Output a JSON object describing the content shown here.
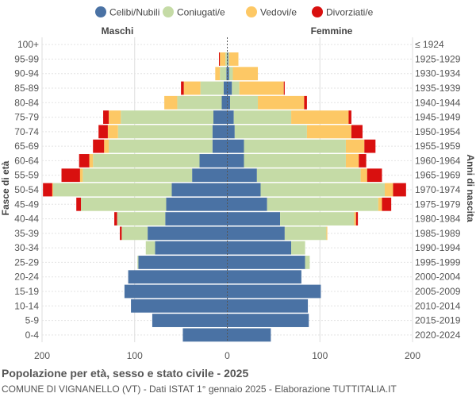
{
  "chart_data": {
    "type": "population-pyramid",
    "title": "Popolazione per età, sesso e stato civile - 2025",
    "subtitle": "COMUNE DI VIGNANELLO (VT) - Dati ISTAT 1° gennaio 2025 - Elaborazione TUTTITALIA.IT",
    "left_label": "Maschi",
    "right_label": "Femmine",
    "ylabel_left": "Fasce di età",
    "ylabel_right": "Anni di nascita",
    "xlim": [
      -200,
      200
    ],
    "x_ticks": [
      -200,
      -100,
      0,
      100,
      200
    ],
    "x_tick_labels": [
      "200",
      "100",
      "0",
      "100",
      "200"
    ],
    "legend_position": "top",
    "series": [
      {
        "name": "Celibi/Nubili",
        "color": "#4a72a4"
      },
      {
        "name": "Coniugati/e",
        "color": "#c5dba6"
      },
      {
        "name": "Vedovi/e",
        "color": "#fdc865"
      },
      {
        "name": "Divorziati/e",
        "color": "#d9100f"
      }
    ],
    "age_groups": [
      "100+",
      "95-99",
      "90-94",
      "85-89",
      "80-84",
      "75-79",
      "70-74",
      "65-69",
      "60-64",
      "55-59",
      "50-54",
      "45-49",
      "40-44",
      "35-39",
      "30-34",
      "25-29",
      "20-24",
      "15-19",
      "10-14",
      "5-9",
      "0-4"
    ],
    "birth_years": [
      "≤ 1924",
      "1925-1929",
      "1930-1934",
      "1935-1939",
      "1940-1944",
      "1945-1949",
      "1950-1954",
      "1955-1959",
      "1960-1964",
      "1965-1969",
      "1970-1974",
      "1975-1979",
      "1980-1984",
      "1985-1989",
      "1990-1994",
      "1995-1999",
      "2000-2004",
      "2005-2009",
      "2010-2014",
      "2015-2019",
      "2020-2024"
    ],
    "males": [
      [
        0,
        0,
        0,
        0
      ],
      [
        0,
        2,
        6,
        1
      ],
      [
        1,
        7,
        5,
        0
      ],
      [
        4,
        25,
        18,
        3
      ],
      [
        6,
        48,
        14,
        0
      ],
      [
        15,
        100,
        13,
        6
      ],
      [
        16,
        102,
        11,
        10
      ],
      [
        16,
        112,
        5,
        12
      ],
      [
        30,
        115,
        4,
        11
      ],
      [
        38,
        118,
        3,
        20
      ],
      [
        60,
        128,
        1,
        10
      ],
      [
        66,
        92,
        0,
        5
      ],
      [
        67,
        52,
        0,
        3
      ],
      [
        86,
        28,
        0,
        2
      ],
      [
        78,
        10,
        0,
        0
      ],
      [
        96,
        1,
        0,
        0
      ],
      [
        107,
        0,
        0,
        0
      ],
      [
        111,
        0,
        0,
        0
      ],
      [
        104,
        0,
        0,
        0
      ],
      [
        81,
        0,
        0,
        0
      ],
      [
        48,
        0,
        0,
        0
      ]
    ],
    "females": [
      [
        0,
        0,
        0,
        0
      ],
      [
        1,
        1,
        10,
        0
      ],
      [
        2,
        4,
        27,
        0
      ],
      [
        5,
        8,
        48,
        1
      ],
      [
        3,
        30,
        50,
        3
      ],
      [
        7,
        62,
        62,
        3
      ],
      [
        8,
        78,
        48,
        12
      ],
      [
        18,
        110,
        20,
        12
      ],
      [
        18,
        110,
        14,
        8
      ],
      [
        32,
        112,
        7,
        16
      ],
      [
        36,
        134,
        9,
        14
      ],
      [
        43,
        120,
        4,
        10
      ],
      [
        57,
        80,
        2,
        2
      ],
      [
        62,
        45,
        1,
        0
      ],
      [
        69,
        15,
        0,
        0
      ],
      [
        84,
        5,
        0,
        0
      ],
      [
        80,
        0,
        0,
        0
      ],
      [
        101,
        0,
        0,
        0
      ],
      [
        87,
        0,
        0,
        0
      ],
      [
        88,
        0,
        0,
        0
      ],
      [
        47,
        0,
        0,
        0
      ]
    ]
  }
}
